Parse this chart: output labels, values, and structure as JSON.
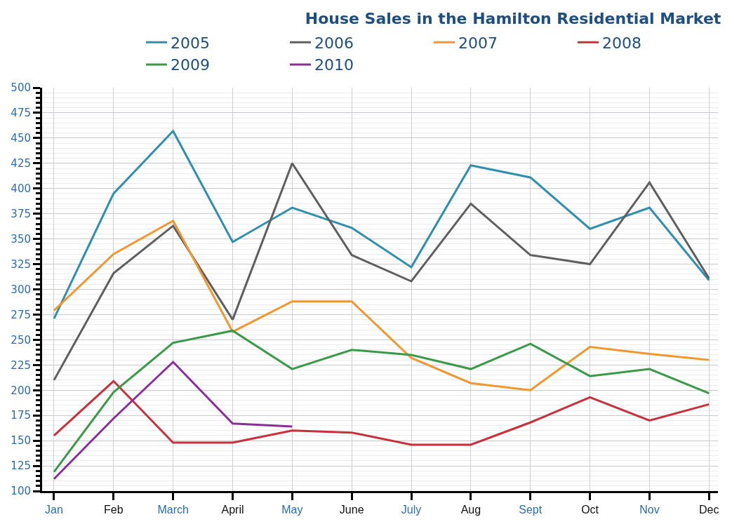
{
  "chart_data": {
    "type": "line",
    "title": "House Sales in the Hamilton Residential Market",
    "categories": [
      "Jan",
      "Feb",
      "March",
      "April",
      "May",
      "June",
      "July",
      "Aug",
      "Sept",
      "Oct",
      "Nov",
      "Dec"
    ],
    "series": [
      {
        "name": "2005",
        "color": "#2e8fb0",
        "values": [
          271,
          395,
          457,
          347,
          381,
          361,
          322,
          423,
          411,
          360,
          381,
          309
        ]
      },
      {
        "name": "2006",
        "color": "#5f5f5f",
        "values": [
          210,
          316,
          363,
          270,
          425,
          334,
          308,
          385,
          334,
          325,
          406,
          311
        ]
      },
      {
        "name": "2007",
        "color": "#f0982e",
        "values": [
          279,
          335,
          368,
          258,
          288,
          288,
          232,
          207,
          200,
          243,
          236,
          230
        ]
      },
      {
        "name": "2008",
        "color": "#c8303a",
        "values": [
          155,
          209,
          148,
          148,
          160,
          158,
          146,
          146,
          168,
          193,
          170,
          186
        ]
      },
      {
        "name": "2009",
        "color": "#3a9a48",
        "values": [
          119,
          198,
          247,
          259,
          221,
          240,
          235,
          221,
          246,
          214,
          221,
          197
        ]
      },
      {
        "name": "2010",
        "color": "#8a2f9a",
        "values": [
          112,
          172,
          228,
          167,
          164,
          null,
          null,
          null,
          null,
          null,
          null,
          null
        ]
      }
    ],
    "ylim": [
      100,
      500
    ],
    "yticks": [
      100,
      125,
      150,
      175,
      200,
      225,
      250,
      275,
      300,
      325,
      350,
      375,
      400,
      425,
      450,
      475,
      500
    ],
    "grid": true,
    "legend": "top right",
    "marker": "none",
    "line_style": "solid"
  }
}
